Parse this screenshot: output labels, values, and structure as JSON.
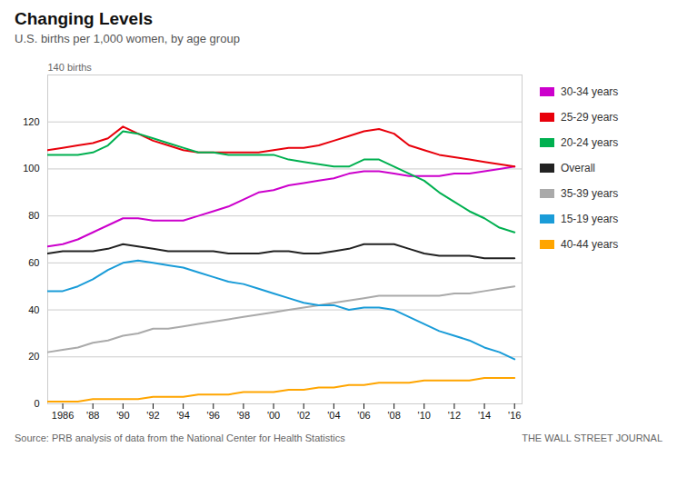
{
  "chart_data": {
    "type": "line",
    "title": "Changing Levels",
    "subtitle": "U.S. births per 1,000 women, by age group",
    "ylabel": "140 births",
    "source": "Source: PRB analysis of data from the National Center for Health Statistics",
    "credit": "THE WALL STREET JOURNAL",
    "x": [
      1985,
      1986,
      1987,
      1988,
      1989,
      1990,
      1991,
      1992,
      1993,
      1994,
      1995,
      1996,
      1997,
      1998,
      1999,
      2000,
      2001,
      2002,
      2003,
      2004,
      2005,
      2006,
      2007,
      2008,
      2009,
      2010,
      2011,
      2012,
      2013,
      2014,
      2015,
      2016
    ],
    "series": [
      {
        "name": "30-34 years",
        "color": "#cc00cc",
        "values": [
          67,
          68,
          70,
          73,
          76,
          79,
          79,
          78,
          78,
          78,
          80,
          82,
          84,
          87,
          90,
          91,
          93,
          94,
          95,
          96,
          98,
          99,
          99,
          98,
          97,
          97,
          97,
          98,
          98,
          99,
          100,
          101
        ]
      },
      {
        "name": "25-29 years",
        "color": "#e8000b",
        "values": [
          108,
          109,
          110,
          111,
          113,
          118,
          115,
          112,
          110,
          108,
          107,
          107,
          107,
          107,
          107,
          108,
          109,
          109,
          110,
          112,
          114,
          116,
          117,
          115,
          110,
          108,
          106,
          105,
          104,
          103,
          102,
          101
        ]
      },
      {
        "name": "20-24 years",
        "color": "#00b050",
        "values": [
          106,
          106,
          106,
          107,
          110,
          116,
          115,
          113,
          111,
          109,
          107,
          107,
          106,
          106,
          106,
          106,
          104,
          103,
          102,
          101,
          101,
          104,
          104,
          101,
          98,
          95,
          90,
          86,
          82,
          79,
          75,
          73
        ]
      },
      {
        "name": "Overall",
        "color": "#222222",
        "values": [
          64,
          65,
          65,
          65,
          66,
          68,
          67,
          66,
          65,
          65,
          65,
          65,
          64,
          64,
          64,
          65,
          65,
          64,
          64,
          65,
          66,
          68,
          68,
          68,
          66,
          64,
          63,
          63,
          63,
          62,
          62,
          62
        ]
      },
      {
        "name": "35-39 years",
        "color": "#aaaaaa",
        "values": [
          22,
          23,
          24,
          26,
          27,
          29,
          30,
          32,
          32,
          33,
          34,
          35,
          36,
          37,
          38,
          39,
          40,
          41,
          42,
          43,
          44,
          45,
          46,
          46,
          46,
          46,
          46,
          47,
          47,
          48,
          49,
          50
        ]
      },
      {
        "name": "15-19 years",
        "color": "#1a9cd8",
        "values": [
          48,
          48,
          50,
          53,
          57,
          60,
          61,
          60,
          59,
          58,
          56,
          54,
          52,
          51,
          49,
          47,
          45,
          43,
          42,
          42,
          40,
          41,
          41,
          40,
          37,
          34,
          31,
          29,
          27,
          24,
          22,
          19
        ]
      },
      {
        "name": "40-44 years",
        "color": "#ffa500",
        "values": [
          1,
          1,
          1,
          2,
          2,
          2,
          2,
          3,
          3,
          3,
          4,
          4,
          4,
          5,
          5,
          5,
          6,
          6,
          7,
          7,
          8,
          8,
          9,
          9,
          9,
          10,
          10,
          10,
          10,
          11,
          11,
          11
        ]
      }
    ],
    "xlim": [
      1985,
      2016.5
    ],
    "ylim": [
      0,
      140
    ],
    "xticks": [
      1986,
      {
        "value": 1988,
        "label": "'88"
      },
      {
        "value": 1990,
        "label": "'90"
      },
      {
        "value": 1992,
        "label": "'92"
      },
      {
        "value": 1994,
        "label": "'94"
      },
      {
        "value": 1996,
        "label": "'96"
      },
      {
        "value": 1998,
        "label": "'98"
      },
      {
        "value": 2000,
        "label": "'00"
      },
      {
        "value": 2002,
        "label": "'02"
      },
      {
        "value": 2004,
        "label": "'04"
      },
      {
        "value": 2006,
        "label": "'06"
      },
      {
        "value": 2008,
        "label": "'08"
      },
      {
        "value": 2010,
        "label": "'10"
      },
      {
        "value": 2012,
        "label": "'12"
      },
      {
        "value": 2014,
        "label": "'14"
      },
      {
        "value": 2016,
        "label": "'16"
      }
    ],
    "yticks": [
      0,
      20,
      40,
      60,
      80,
      100,
      120
    ],
    "grid": true,
    "legend": "right"
  }
}
